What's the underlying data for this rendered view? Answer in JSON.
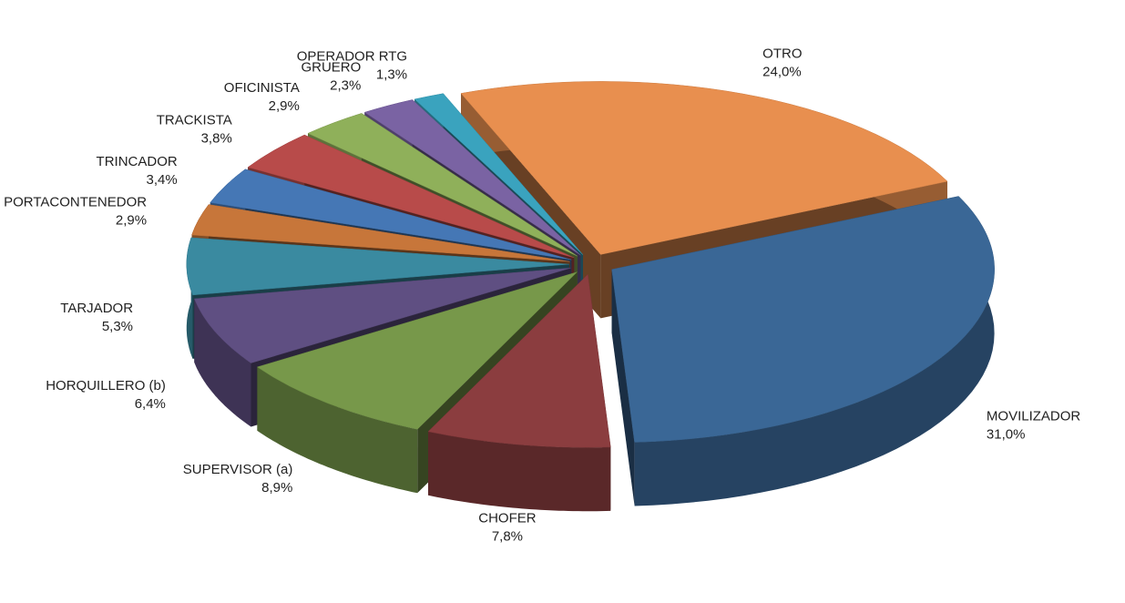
{
  "chart_data": {
    "type": "pie",
    "categories": [
      "MOVILIZADOR",
      "CHOFER",
      "SUPERVISOR (a)",
      "HORQUILLERO (b)",
      "TARJADOR",
      "OPERADOR PORTACONTENEDOR",
      "TRINCADOR",
      "TRACKISTA",
      "OFICINISTA",
      "GRUERO",
      "OPERADOR RTG",
      "OTRO"
    ],
    "values": [
      31.0,
      7.8,
      8.9,
      6.4,
      5.3,
      2.9,
      3.4,
      3.8,
      2.9,
      2.3,
      1.3,
      24.0
    ],
    "value_labels": [
      "31,0%",
      "7,8%",
      "8,9%",
      "6,4%",
      "5,3%",
      "2,9%",
      "3,4%",
      "3,8%",
      "2,9%",
      "2,3%",
      "1,3%",
      "24,0%"
    ],
    "colors": [
      "#3a6796",
      "#8b3d3f",
      "#77984a",
      "#5f4f82",
      "#3a8aa0",
      "#c7763a",
      "#4577b5",
      "#b84b4a",
      "#8fb05a",
      "#7a63a3",
      "#3aa3be",
      "#e88f4f"
    ]
  }
}
